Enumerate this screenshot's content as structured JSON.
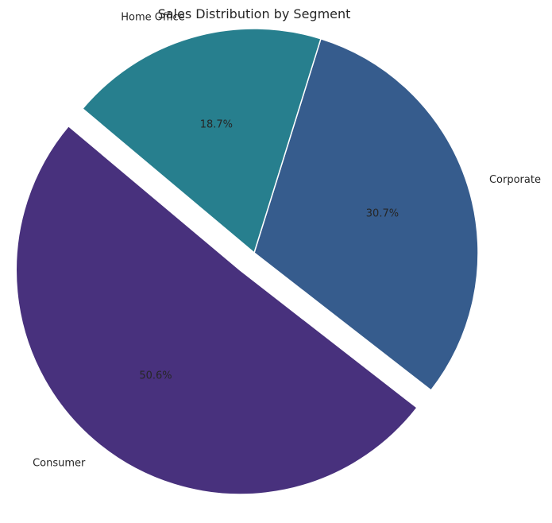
{
  "chart_data": {
    "type": "pie",
    "title": "Sales Distribution by Segment",
    "slices": [
      {
        "label": "Consumer",
        "value": 50.6,
        "pct_text": "50.6%",
        "color": "#48317d",
        "exploded": true
      },
      {
        "label": "Corporate",
        "value": 30.7,
        "pct_text": "30.7%",
        "color": "#365c8d",
        "exploded": false
      },
      {
        "label": "Home Office",
        "value": 18.7,
        "pct_text": "18.7%",
        "color": "#277f8e",
        "exploded": false
      }
    ],
    "start_angle_deg": 140,
    "direction": "counterclockwise",
    "legend": "none"
  }
}
